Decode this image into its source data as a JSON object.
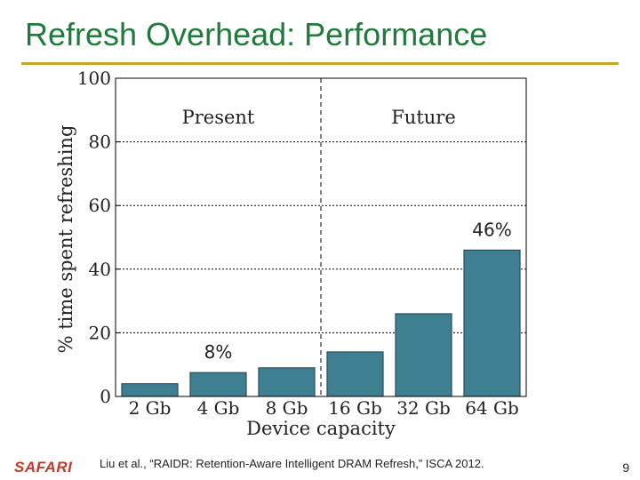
{
  "slide": {
    "title": "Refresh Overhead: Performance",
    "logo": "SAFARI",
    "citation": "Liu et al., “RAIDR: Retention-Aware Intelligent DRAM Refresh,” ISCA 2012.",
    "page_number": "9",
    "accent_color": "#c9a227",
    "title_color": "#1f7a3c",
    "bar_color": "#3e7f91"
  },
  "chart_data": {
    "type": "bar",
    "categories": [
      "2 Gb",
      "4 Gb",
      "8 Gb",
      "16 Gb",
      "32 Gb",
      "64 Gb"
    ],
    "values": [
      4,
      7.5,
      9,
      14,
      26,
      46
    ],
    "xlabel": "Device capacity",
    "ylabel": "% time spent refreshing",
    "ylim": [
      0,
      100
    ],
    "yticks": [
      0,
      20,
      40,
      60,
      80,
      100
    ],
    "grid": true,
    "regions": [
      "Present",
      "Future"
    ],
    "divider_after_index": 2,
    "annotations": [
      {
        "text": "8%",
        "category_index": 1
      },
      {
        "text": "46%",
        "category_index": 5
      }
    ]
  }
}
